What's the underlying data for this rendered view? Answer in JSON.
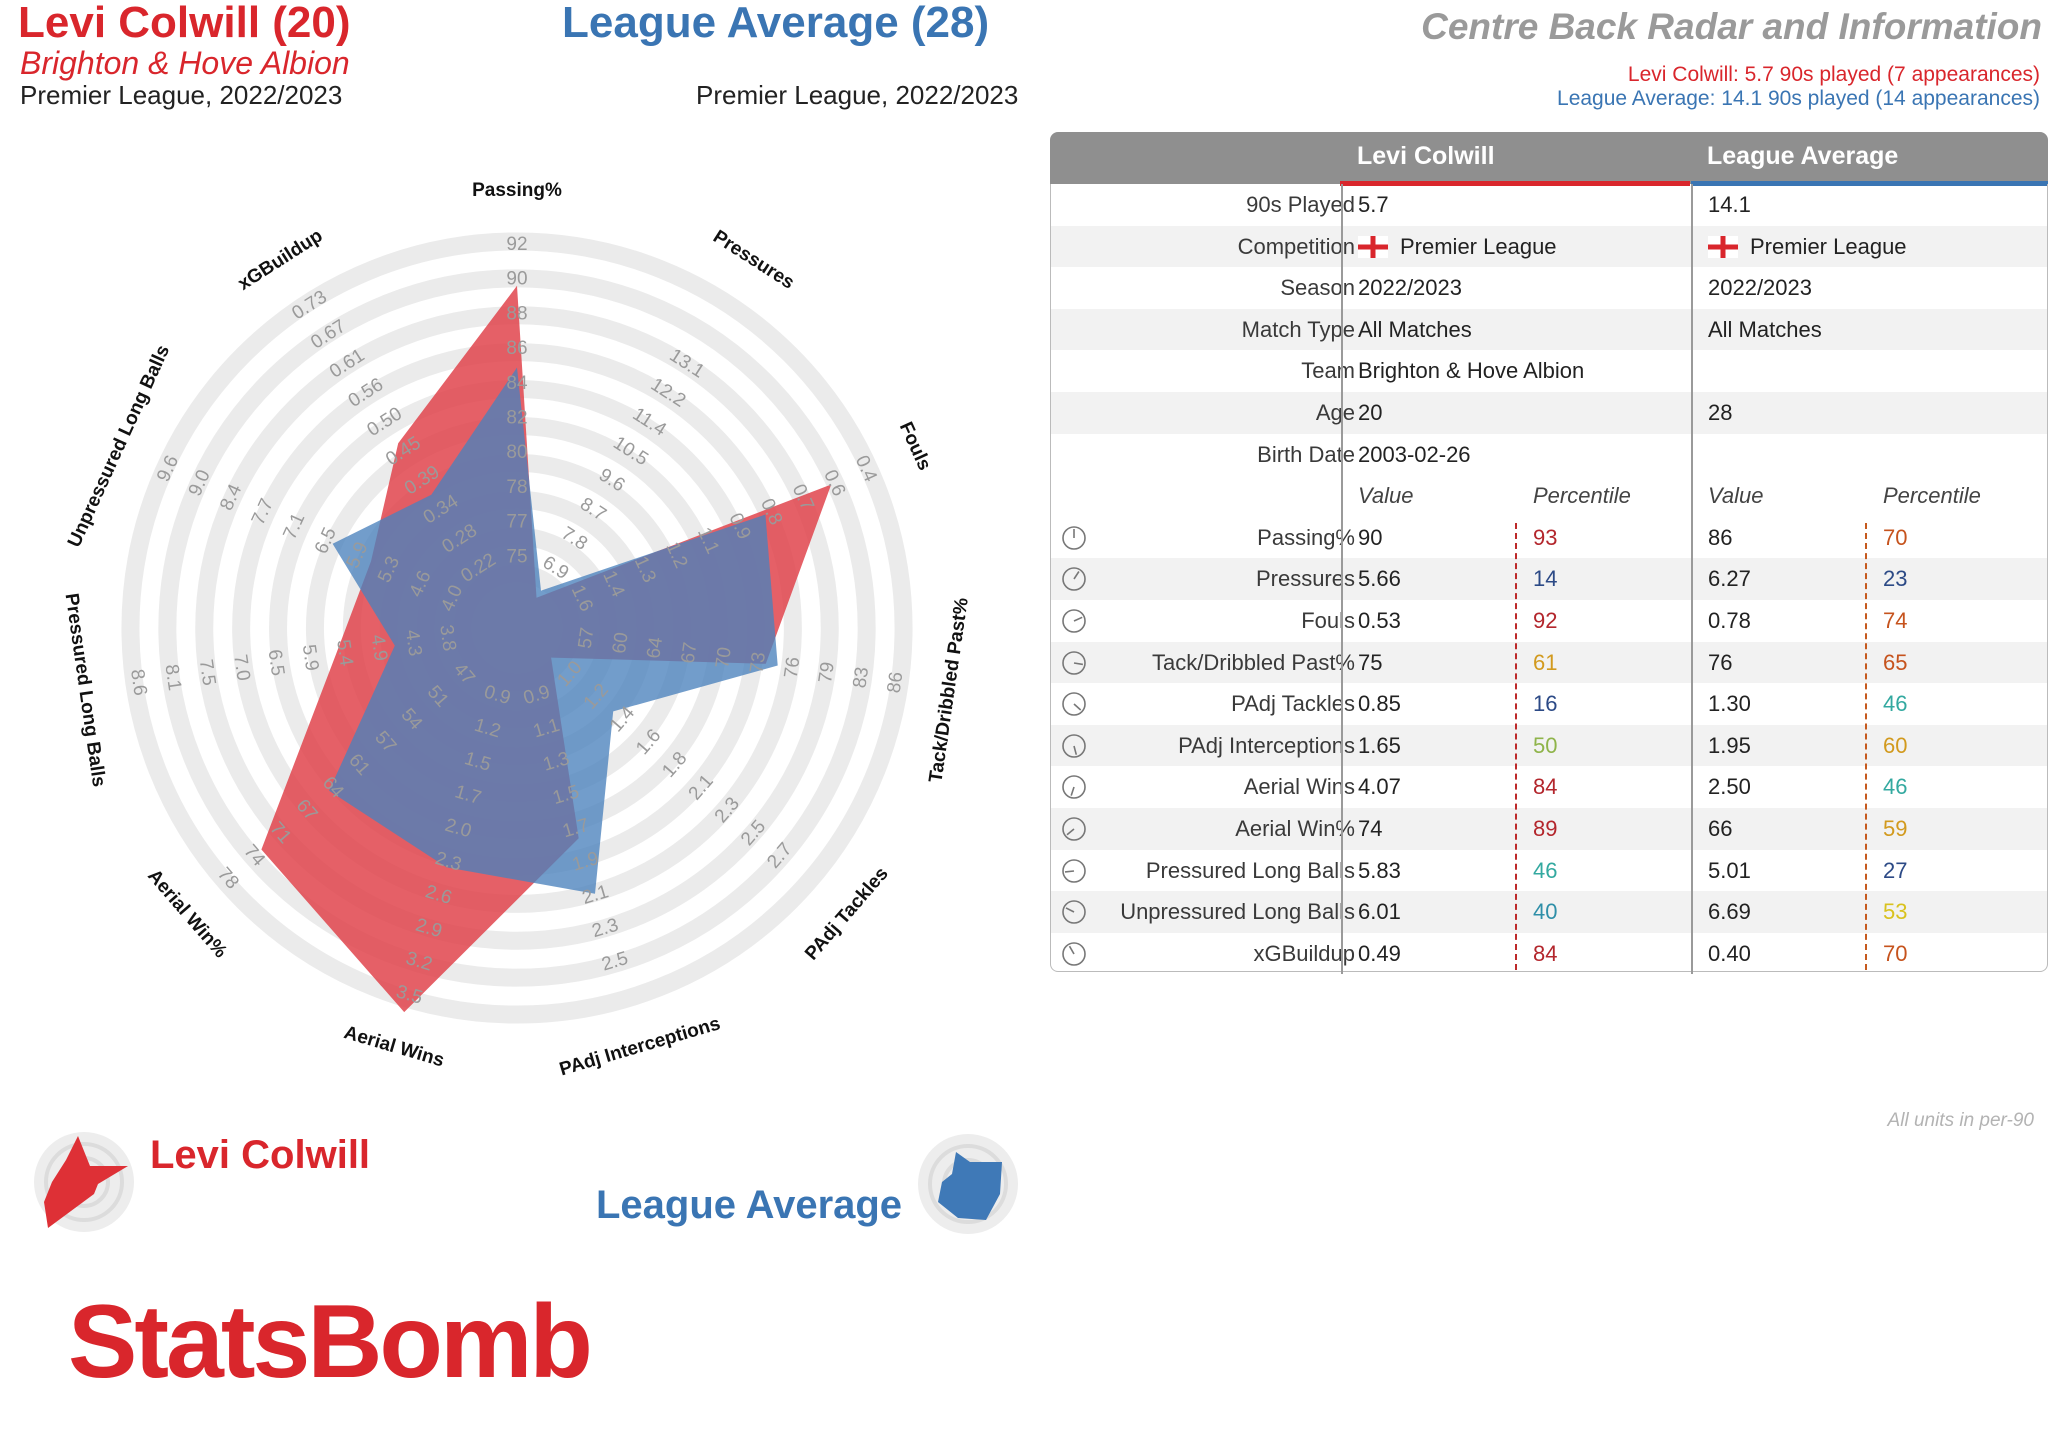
{
  "header": {
    "player_title": "Levi Colwill (20)",
    "player_team": "Brighton & Hove Albion",
    "player_competition": "Premier League, 2022/2023",
    "league_title": "League Average (28)",
    "league_competition": "Premier League, 2022/2023",
    "radar_title": "Centre Back Radar and Information",
    "player_minutes": "Levi Colwill: 5.7 90s played (7 appearances)",
    "league_minutes": "League Average: 14.1 90s played (14 appearances)"
  },
  "colors": {
    "player": "#e0444c",
    "league": "#4a82bd",
    "overlap": "#6e6a99",
    "ring": "#ebebeb",
    "tick": "#9a9a9a"
  },
  "chart_data": {
    "type": "radar",
    "axes": [
      {
        "label": "Passing%",
        "ticks": [
          "75",
          "77",
          "78",
          "80",
          "82",
          "84",
          "86",
          "88",
          "90",
          "92"
        ],
        "min": 75,
        "max": 92
      },
      {
        "label": "Pressures",
        "ticks": [
          "6.9",
          "7.8",
          "8.7",
          "9.6",
          "10.5",
          "11.4",
          "12.2",
          "13.1"
        ],
        "min": 6.1,
        "max": 13.1
      },
      {
        "label": "Fouls",
        "ticks": [
          "1.6",
          "1.4",
          "1.3",
          "1.2",
          "1.1",
          "0.9",
          "0.8",
          "0.7",
          "0.6",
          "0.4"
        ],
        "min": 1.6,
        "max": 0.4
      },
      {
        "label": "Tack/Dribbled Past%",
        "ticks": [
          "57",
          "60",
          "64",
          "67",
          "70",
          "73",
          "76",
          "79",
          "83",
          "86"
        ],
        "min": 57,
        "max": 86
      },
      {
        "label": "PAdj Tackles",
        "ticks": [
          "1.0",
          "1.2",
          "1.4",
          "1.6",
          "1.8",
          "2.1",
          "2.3",
          "2.5",
          "2.7"
        ],
        "min": 0.8,
        "max": 2.7
      },
      {
        "label": "PAdj Interceptions",
        "ticks": [
          "0.9",
          "1.1",
          "1.3",
          "1.5",
          "1.7",
          "1.9",
          "2.1",
          "2.3",
          "2.5"
        ],
        "min": 0.7,
        "max": 2.5
      },
      {
        "label": "Aerial Wins",
        "ticks": [
          "0.9",
          "1.2",
          "1.5",
          "1.7",
          "2.0",
          "2.3",
          "2.6",
          "2.9",
          "3.2",
          "3.5"
        ],
        "min": 0.9,
        "max": 3.5
      },
      {
        "label": "Aerial Win%",
        "ticks": [
          "47",
          "51",
          "54",
          "57",
          "61",
          "64",
          "67",
          "71",
          "74",
          "78"
        ],
        "min": 47,
        "max": 78
      },
      {
        "label": "Pressured Long Balls",
        "ticks": [
          "3.8",
          "4.3",
          "4.9",
          "5.4",
          "5.9",
          "6.5",
          "7.0",
          "7.5",
          "8.1",
          "8.6"
        ],
        "min": 3.8,
        "max": 8.6
      },
      {
        "label": "Unpressured Long Balls",
        "ticks": [
          "4.0",
          "4.6",
          "5.3",
          "5.9",
          "6.5",
          "7.1",
          "7.7",
          "8.4",
          "9.0",
          "9.6"
        ],
        "min": 4.0,
        "max": 9.6
      },
      {
        "label": "xGBuildup",
        "ticks": [
          "0.22",
          "0.28",
          "0.34",
          "0.39",
          "0.45",
          "0.50",
          "0.56",
          "0.61",
          "0.67",
          "0.73"
        ],
        "min": 0.22,
        "max": 0.73
      }
    ],
    "series": [
      {
        "name": "Levi Colwill",
        "values": [
          90,
          5.66,
          0.53,
          75,
          0.85,
          1.65,
          4.07,
          74,
          5.83,
          6.01,
          0.49
        ]
      },
      {
        "name": "League Average",
        "values": [
          86,
          6.27,
          0.78,
          76,
          1.3,
          1.95,
          2.5,
          66,
          5.01,
          6.69,
          0.4
        ]
      }
    ]
  },
  "table": {
    "col_player": "Levi Colwill",
    "col_league": "League Average",
    "info_rows": [
      {
        "label": "90s Played",
        "player": "5.7",
        "league": "14.1"
      },
      {
        "label": "Competition",
        "player": "Premier League",
        "league": "Premier League"
      },
      {
        "label": "Season",
        "player": "2022/2023",
        "league": "2022/2023"
      },
      {
        "label": "Match Type",
        "player": "All Matches",
        "league": "All Matches"
      },
      {
        "label": "Team",
        "player": "Brighton & Hove Albion",
        "league": ""
      },
      {
        "label": "Age",
        "player": "20",
        "league": "28"
      },
      {
        "label": "Birth Date",
        "player": "2003-02-26",
        "league": ""
      }
    ],
    "sub_value": "Value",
    "sub_percentile": "Percentile",
    "stat_rows": [
      {
        "label": "Passing%",
        "pv": "90",
        "pp": "93",
        "ppc": "#b3262c",
        "lv": "86",
        "lp": "70",
        "lpc": "#c6531d"
      },
      {
        "label": "Pressures",
        "pv": "5.66",
        "pp": "14",
        "ppc": "#2c4a86",
        "lv": "6.27",
        "lp": "23",
        "lpc": "#2c4a86"
      },
      {
        "label": "Fouls",
        "pv": "0.53",
        "pp": "92",
        "ppc": "#b3262c",
        "lv": "0.78",
        "lp": "74",
        "lpc": "#c6531d"
      },
      {
        "label": "Tack/Dribbled Past%",
        "pv": "75",
        "pp": "61",
        "ppc": "#d29a1e",
        "lv": "76",
        "lp": "65",
        "lpc": "#c6531d"
      },
      {
        "label": "PAdj Tackles",
        "pv": "0.85",
        "pp": "16",
        "ppc": "#2c4a86",
        "lv": "1.30",
        "lp": "46",
        "lpc": "#33a9a0"
      },
      {
        "label": "PAdj Interceptions",
        "pv": "1.65",
        "pp": "50",
        "ppc": "#8fb44a",
        "lv": "1.95",
        "lp": "60",
        "lpc": "#d29a1e"
      },
      {
        "label": "Aerial Wins",
        "pv": "4.07",
        "pp": "84",
        "ppc": "#b3262c",
        "lv": "2.50",
        "lp": "46",
        "lpc": "#33a9a0"
      },
      {
        "label": "Aerial Win%",
        "pv": "74",
        "pp": "89",
        "ppc": "#b3262c",
        "lv": "66",
        "lp": "59",
        "lpc": "#d29a1e"
      },
      {
        "label": "Pressured Long Balls",
        "pv": "5.83",
        "pp": "46",
        "ppc": "#33a9a0",
        "lv": "5.01",
        "lp": "27",
        "lpc": "#2c4a86"
      },
      {
        "label": "Unpressured Long Balls",
        "pv": "6.01",
        "pp": "40",
        "ppc": "#2f8fa8",
        "lv": "6.69",
        "lp": "53",
        "lpc": "#d9c21e"
      },
      {
        "label": "xGBuildup",
        "pv": "0.49",
        "pp": "84",
        "ppc": "#b3262c",
        "lv": "0.40",
        "lp": "70",
        "lpc": "#c6531d"
      }
    ],
    "note": "All units in per-90"
  },
  "legend": {
    "player": "Levi Colwill",
    "league": "League Average"
  },
  "brand": "StatsBomb",
  "icons": {
    "flag": "england-flag-icon",
    "stat": "dial-icon"
  }
}
